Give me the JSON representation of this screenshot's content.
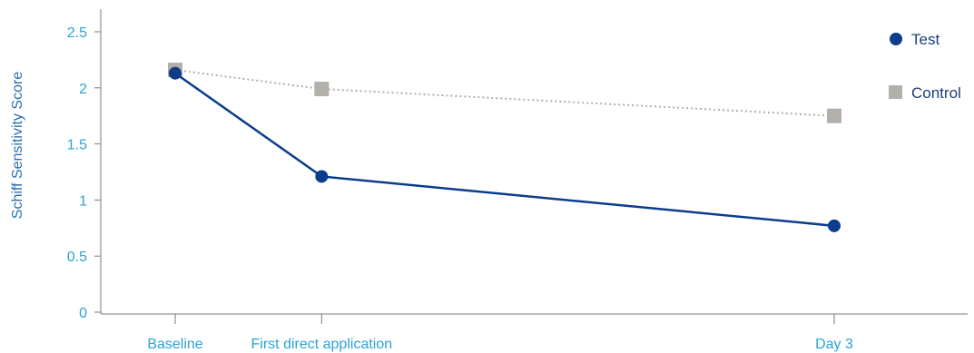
{
  "chart_data": {
    "type": "line",
    "title": "",
    "xlabel": "",
    "ylabel": "Schiff Sensitivity Score",
    "ylim": [
      0,
      2.5
    ],
    "yticks": [
      "0",
      "0.5",
      "1",
      "1.5",
      "2",
      "2.5"
    ],
    "categories": [
      "Baseline",
      "First direct application",
      "Day 3"
    ],
    "x_positions_days": [
      0,
      1,
      4.5
    ],
    "series": [
      {
        "name": "Test",
        "values": [
          2.13,
          1.21,
          0.77
        ],
        "color": "#0b3d8c",
        "marker": "circle",
        "line_style": "solid"
      },
      {
        "name": "Control",
        "values": [
          2.16,
          1.99,
          1.75
        ],
        "color": "#b3b0ab",
        "marker": "square",
        "line_style": "dotted"
      }
    ],
    "legend_placement": "top-right",
    "grid": false
  }
}
